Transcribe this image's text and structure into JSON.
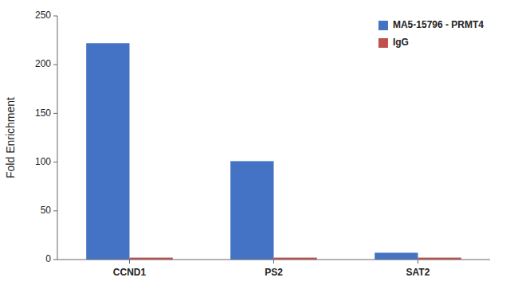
{
  "chart_data": {
    "type": "bar",
    "categories": [
      "CCND1",
      "PS2",
      "SAT2"
    ],
    "series": [
      {
        "name": "MA5-15796 - PRMT4",
        "color": "#4472C4",
        "values": [
          222,
          101,
          7
        ]
      },
      {
        "name": "IgG",
        "color": "#C0504D",
        "values": [
          2,
          2,
          2
        ]
      }
    ],
    "ylabel": "Fold Enrichment",
    "ylim": [
      0,
      250
    ],
    "yticks": [
      0,
      50,
      100,
      150,
      200,
      250
    ],
    "grid": false,
    "legend": "upper right"
  }
}
